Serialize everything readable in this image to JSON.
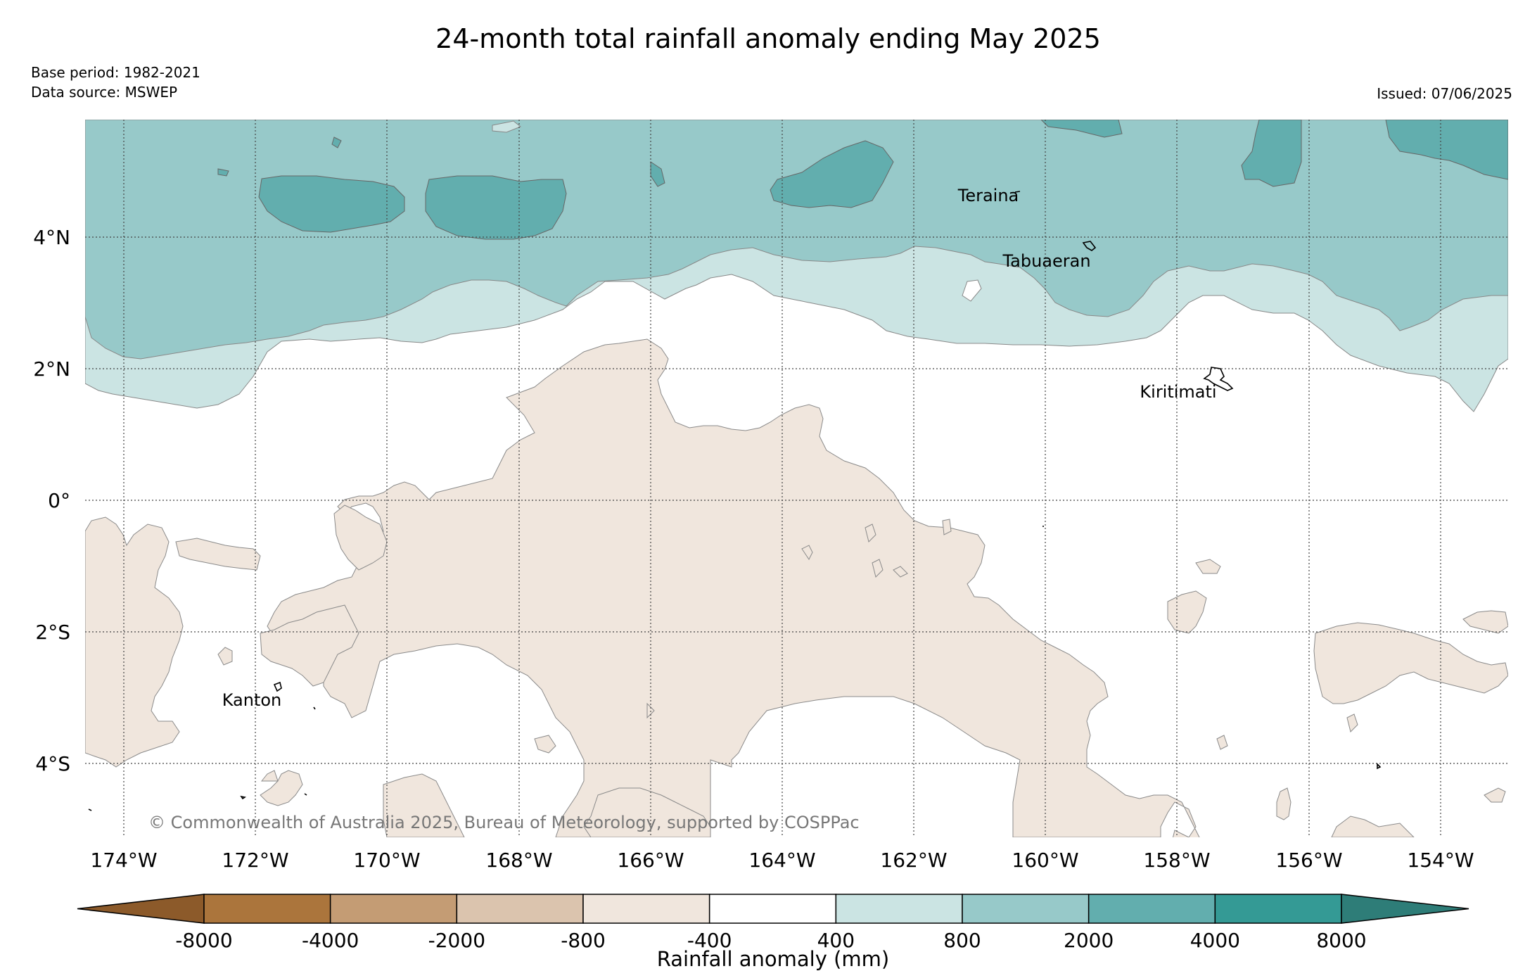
{
  "title": "24-month total rainfall anomaly ending May 2025",
  "base_period": "Base period: 1982-2021",
  "data_source": "Data source: MSWEP",
  "issued": "Issued: 07/06/2025",
  "copyright": "© Commonwealth of Australia 2025, Bureau of Meteorology, supported by COSPPac",
  "lon_ticks": [
    "174°W",
    "172°W",
    "170°W",
    "168°W",
    "166°W",
    "164°W",
    "162°W",
    "160°W",
    "158°W",
    "156°W",
    "154°W"
  ],
  "lat_ticks": [
    "4°N",
    "2°N",
    "0°",
    "2°S",
    "4°S"
  ],
  "places": [
    {
      "name": "Teraina",
      "lon": -159.38,
      "lat": 4.69
    },
    {
      "name": "Tabuaeran",
      "lon": -159.35,
      "lat": 3.86
    },
    {
      "name": "Kiritimati",
      "lon": -157.4,
      "lat": 1.87
    },
    {
      "name": "Kanton",
      "lon": -171.7,
      "lat": -2.8
    }
  ],
  "colorbar": {
    "label": "Rainfall anomaly (mm)",
    "ticks": [
      "-8000",
      "-4000",
      "-2000",
      "-800",
      "-400",
      "400",
      "800",
      "2000",
      "4000",
      "8000"
    ],
    "colors": {
      "below_min": "#8c5a2a",
      "bins": [
        "#ab753c",
        "#c49c74",
        "#dbc4ae",
        "#f0e6dd",
        "#ffffff",
        "#cbe4e3",
        "#97c9c9",
        "#62aeae",
        "#349a95"
      ],
      "above_max": "#2e7d78"
    }
  },
  "map_colors": {
    "wet_2000_4000": "#62aeae",
    "wet_800_2000": "#97c9c9",
    "wet_400_800": "#cbe4e3",
    "dry_-800_-400": "#f0e6dd"
  }
}
